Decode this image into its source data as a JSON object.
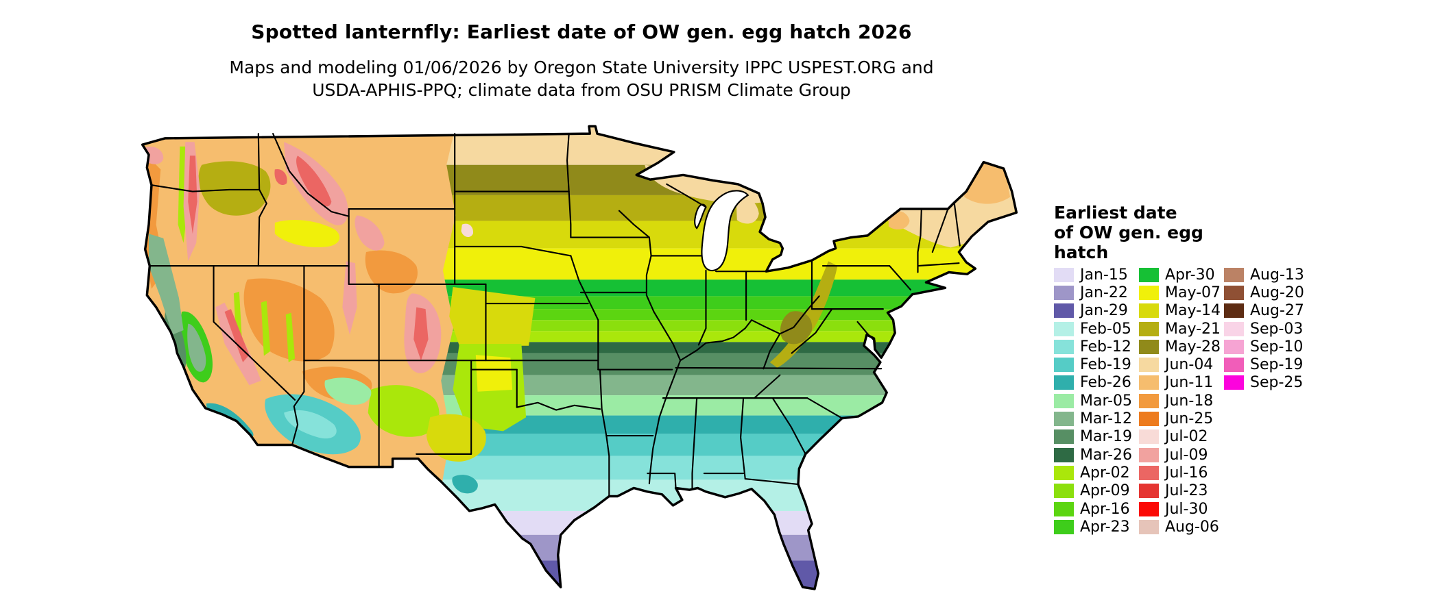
{
  "title": "Spotted lanternfly: Earliest date of OW gen. egg hatch 2026",
  "subtitle_lines": [
    "Maps and modeling 01/06/2026 by Oregon State University IPPC USPEST.ORG and",
    "USDA-APHIS-PPQ; climate data from OSU PRISM Climate Group"
  ],
  "legend": {
    "title_lines": [
      "Earliest date",
      "of OW gen. egg",
      "hatch"
    ],
    "columns": [
      {
        "entries": [
          {
            "key": "jan15",
            "label": "Jan-15",
            "color": "#E2DCF5"
          },
          {
            "key": "jan22",
            "label": "Jan-22",
            "color": "#9E96C8"
          },
          {
            "key": "jan29",
            "label": "Jan-29",
            "color": "#6059A8"
          },
          {
            "key": "feb05",
            "label": "Feb-05",
            "color": "#B4F0E6"
          },
          {
            "key": "feb12",
            "label": "Feb-12",
            "color": "#86E2DA"
          },
          {
            "key": "feb19",
            "label": "Feb-19",
            "color": "#55CCC6"
          },
          {
            "key": "feb26",
            "label": "Feb-26",
            "color": "#2FAFAC"
          },
          {
            "key": "mar05",
            "label": "Mar-05",
            "color": "#9BEBA4"
          },
          {
            "key": "mar12",
            "label": "Mar-12",
            "color": "#83B68C"
          },
          {
            "key": "mar19",
            "label": "Mar-19",
            "color": "#578F64"
          },
          {
            "key": "mar26",
            "label": "Mar-26",
            "color": "#2E6A44"
          },
          {
            "key": "apr02",
            "label": "Apr-02",
            "color": "#AAE70B"
          },
          {
            "key": "apr09",
            "label": "Apr-09",
            "color": "#8BDF0D"
          },
          {
            "key": "apr16",
            "label": "Apr-16",
            "color": "#5CD511"
          },
          {
            "key": "apr23",
            "label": "Apr-23",
            "color": "#3ECD1B"
          }
        ]
      },
      {
        "entries": [
          {
            "key": "apr30",
            "label": "Apr-30",
            "color": "#16C035"
          },
          {
            "key": "may07",
            "label": "May-07",
            "color": "#F0F00A"
          },
          {
            "key": "may14",
            "label": "May-14",
            "color": "#D8DA0C"
          },
          {
            "key": "may21",
            "label": "May-21",
            "color": "#B5AE12"
          },
          {
            "key": "may28",
            "label": "May-28",
            "color": "#908A1A"
          },
          {
            "key": "jun04",
            "label": "Jun-04",
            "color": "#F6D9A0"
          },
          {
            "key": "jun11",
            "label": "Jun-11",
            "color": "#F6BD6E"
          },
          {
            "key": "jun18",
            "label": "Jun-18",
            "color": "#F29A3E"
          },
          {
            "key": "jun25",
            "label": "Jun-25",
            "color": "#ED7B1E"
          },
          {
            "key": "jul02",
            "label": "Jul-02",
            "color": "#F8DBD7"
          },
          {
            "key": "jul09",
            "label": "Jul-09",
            "color": "#F1A29F"
          },
          {
            "key": "jul16",
            "label": "Jul-16",
            "color": "#EB6663"
          },
          {
            "key": "jul23",
            "label": "Jul-23",
            "color": "#E53532"
          },
          {
            "key": "jul30",
            "label": "Jul-30",
            "color": "#FB0A06"
          },
          {
            "key": "aug06",
            "label": "Aug-06",
            "color": "#E6C4B9"
          }
        ]
      },
      {
        "entries": [
          {
            "key": "aug13",
            "label": "Aug-13",
            "color": "#BB8265"
          },
          {
            "key": "aug20",
            "label": "Aug-20",
            "color": "#8F5034"
          },
          {
            "key": "aug27",
            "label": "Aug-27",
            "color": "#5D2C13"
          },
          {
            "key": "sep03",
            "label": "Sep-03",
            "color": "#F9D4E7"
          },
          {
            "key": "sep10",
            "label": "Sep-10",
            "color": "#F6A4D3"
          },
          {
            "key": "sep19",
            "label": "Sep-19",
            "color": "#F15DB9"
          },
          {
            "key": "sep25",
            "label": "Sep-25",
            "color": "#FC03DD"
          }
        ]
      }
    ]
  }
}
